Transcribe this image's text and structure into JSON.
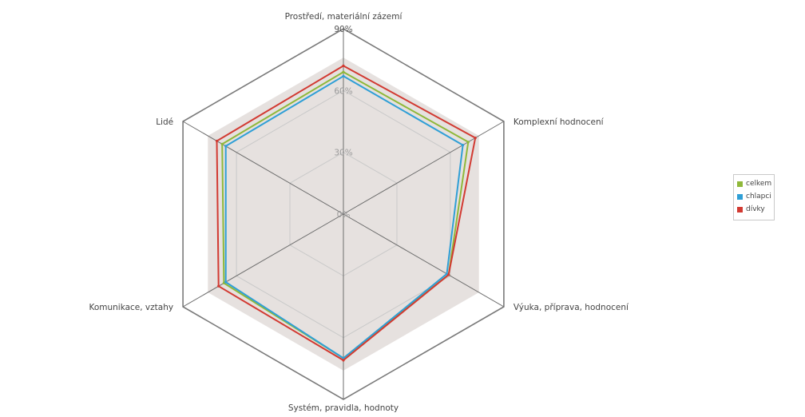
{
  "chart_data": {
    "type": "radar",
    "categories": [
      "Prostředí, materiální zázemí",
      "Komplexní hodnocení",
      "Výuka, příprava, hodnocení",
      "Systém, pravidla, hodnoty",
      "Komunikace, vztahy",
      "Lidé"
    ],
    "axis_tick_labels": [
      "0%",
      "30%",
      "60%",
      "90%"
    ],
    "range": [
      0,
      90
    ],
    "unit": "%",
    "grid": true,
    "legend_position": "right",
    "series": [
      {
        "name": "celkem",
        "color": "#8fb83a",
        "values": [
          69,
          70,
          59,
          70,
          67,
          68
        ]
      },
      {
        "name": "chlapci",
        "color": "#2f9fd6",
        "values": [
          67,
          67,
          58,
          70,
          66,
          66
        ]
      },
      {
        "name": "dívky",
        "color": "#d23a32",
        "values": [
          72,
          74,
          59,
          71,
          70,
          71
        ]
      }
    ],
    "area_fill_color": "#e3dedc",
    "grid_color": "#c9c9c9",
    "frame_color": "#7a7a7a"
  }
}
